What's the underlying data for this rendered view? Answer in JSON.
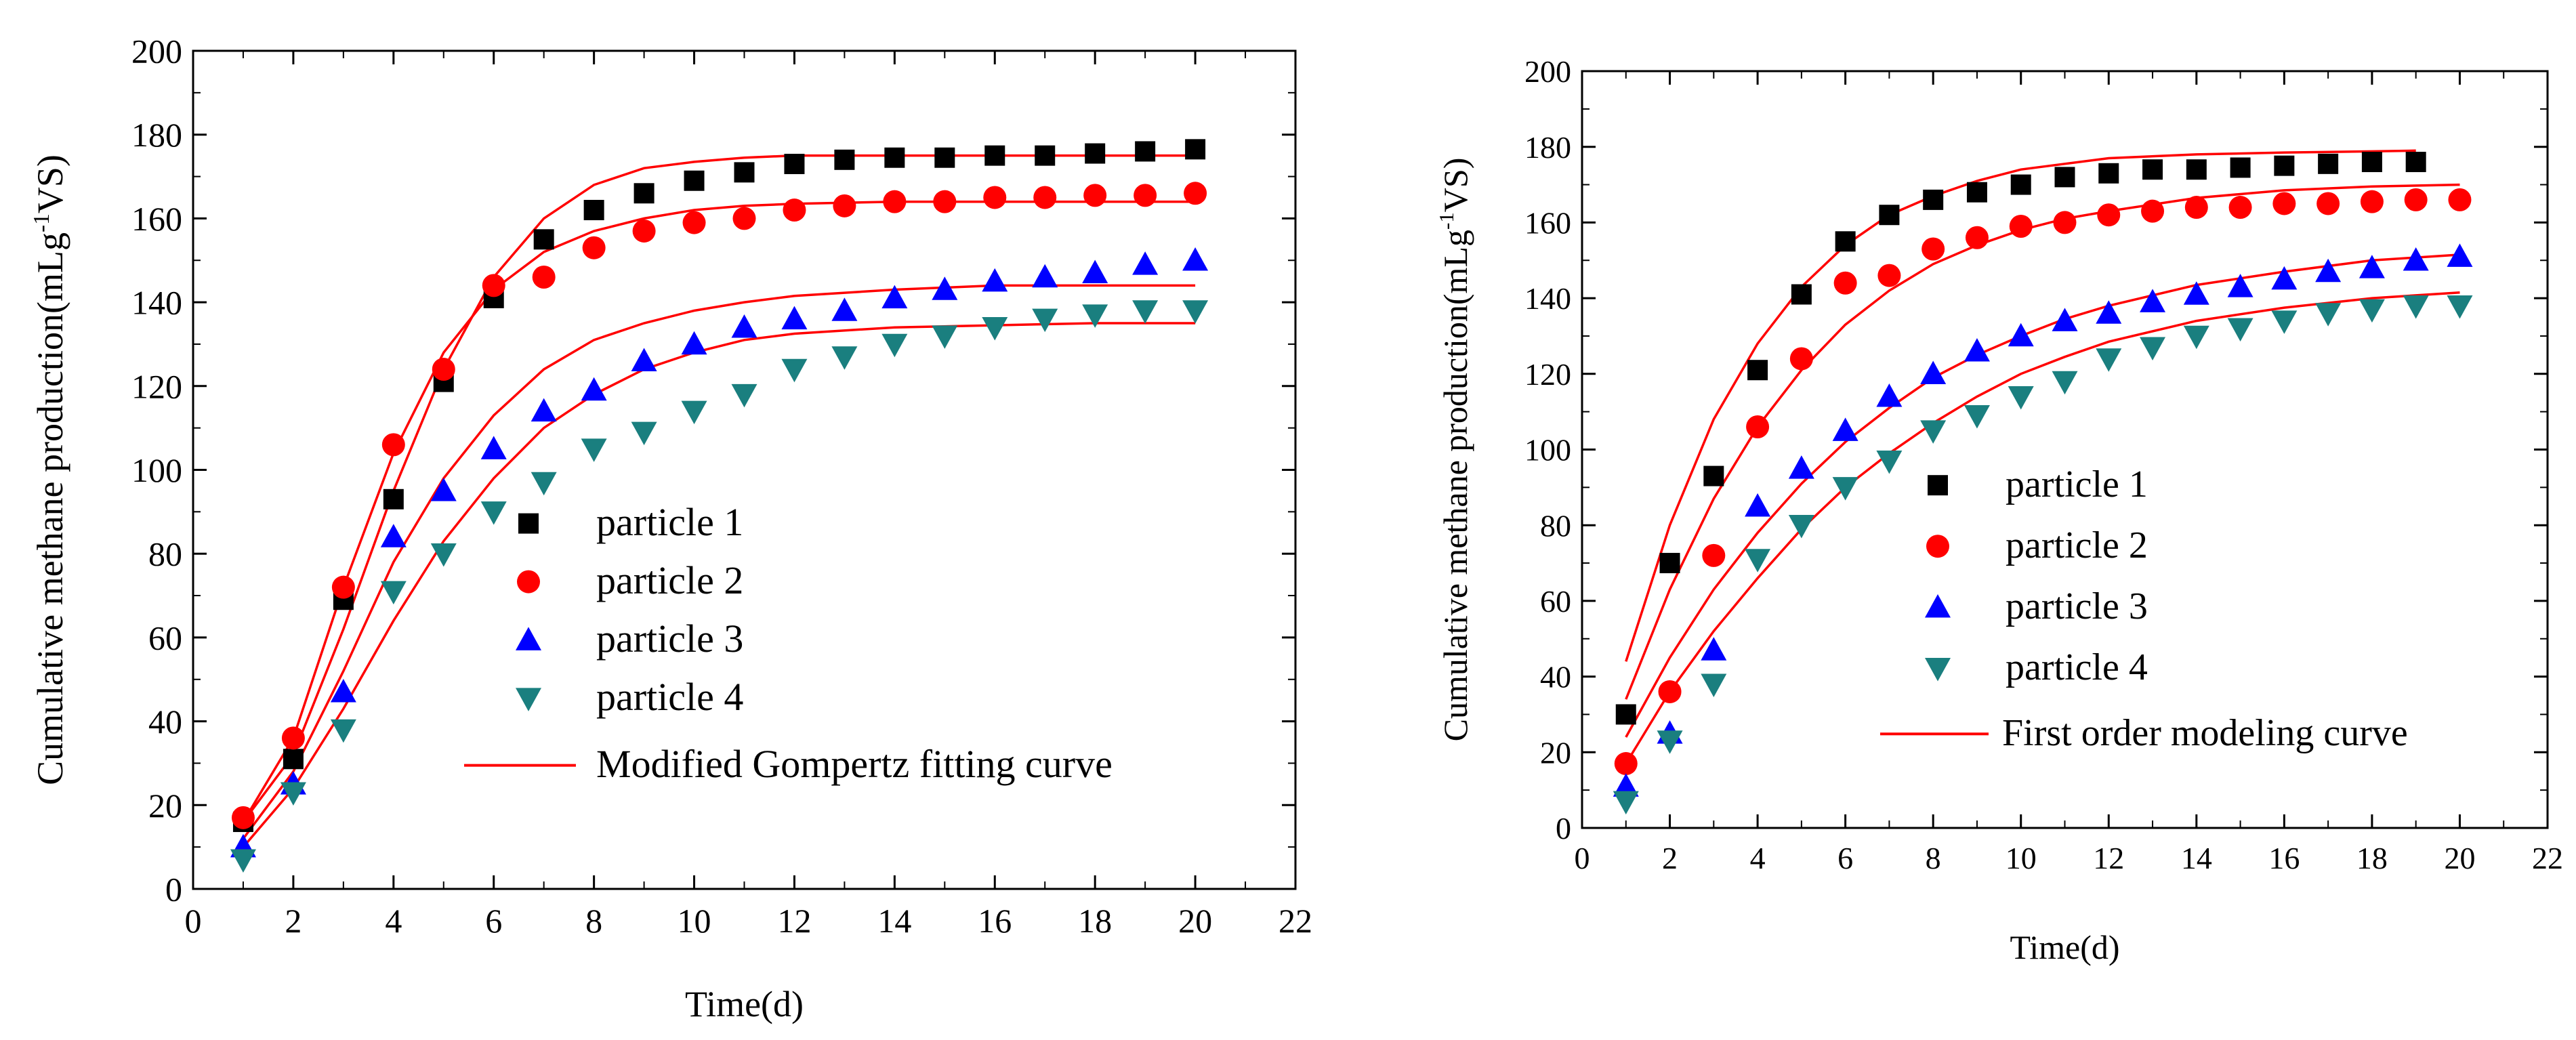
{
  "chart_data": [
    {
      "type": "scatter",
      "panel": "left",
      "xlabel": "Time(d)",
      "ylabel": "Cumulative methane production(mLg",
      "ylabel_sup": "-1",
      "ylabel_end": "VS)",
      "xlim": [
        0,
        22
      ],
      "ylim": [
        0,
        200
      ],
      "xticks": [
        0,
        2,
        4,
        6,
        8,
        10,
        12,
        14,
        16,
        18,
        20,
        22
      ],
      "yticks": [
        0,
        20,
        40,
        60,
        80,
        100,
        120,
        140,
        160,
        180,
        200
      ],
      "legend_position": "lower-right",
      "fit_label": "Modified Gompertz fitting curve",
      "series": [
        {
          "name": "particle 1",
          "marker": "square",
          "color": "#000000",
          "x": [
            1,
            2,
            3,
            4,
            5,
            6,
            7,
            8,
            9,
            10,
            11,
            12,
            13,
            14,
            15,
            16,
            17,
            18,
            19,
            20
          ],
          "values": [
            16,
            31,
            69,
            93,
            121,
            141,
            155,
            162,
            166,
            169,
            171,
            173,
            174,
            174.5,
            174.5,
            175,
            175,
            175.5,
            176,
            176.5
          ]
        },
        {
          "name": "particle 2",
          "marker": "circle",
          "color": "#ff0000",
          "x": [
            1,
            2,
            3,
            4,
            5,
            6,
            7,
            8,
            9,
            10,
            11,
            12,
            13,
            14,
            15,
            16,
            17,
            18,
            19,
            20
          ],
          "values": [
            17,
            36,
            72,
            106,
            124,
            144,
            146,
            153,
            157,
            159,
            160,
            162,
            163,
            164,
            164,
            165,
            165,
            165.5,
            165.5,
            166
          ]
        },
        {
          "name": "particle 3",
          "marker": "triangle-up",
          "color": "#0000ff",
          "x": [
            1,
            2,
            3,
            4,
            5,
            6,
            7,
            8,
            9,
            10,
            11,
            12,
            13,
            14,
            15,
            16,
            17,
            18,
            19,
            20
          ],
          "values": [
            10,
            25,
            47,
            84,
            95,
            105,
            114,
            119,
            126,
            130,
            134,
            136,
            138,
            141,
            143,
            145,
            146,
            147,
            149,
            150
          ]
        },
        {
          "name": "particle 4",
          "marker": "triangle-down",
          "color": "#1a7f7f",
          "x": [
            1,
            2,
            3,
            4,
            5,
            6,
            7,
            8,
            9,
            10,
            11,
            12,
            13,
            14,
            15,
            16,
            17,
            18,
            19,
            20
          ],
          "values": [
            7,
            23,
            38,
            71,
            80,
            90,
            97,
            105,
            109,
            114,
            118,
            124,
            127,
            130,
            132,
            134,
            136,
            137,
            138,
            138
          ]
        }
      ],
      "fits": [
        {
          "for": "particle 1",
          "x": [
            1,
            2,
            3,
            4,
            5,
            6,
            7,
            8,
            9,
            10,
            11,
            12,
            14,
            16,
            18,
            20
          ],
          "values": [
            16,
            32,
            62,
            95,
            124,
            146,
            160,
            168,
            172,
            173.5,
            174.5,
            175,
            175,
            175,
            175,
            175
          ]
        },
        {
          "for": "particle 2",
          "x": [
            1,
            2,
            3,
            4,
            5,
            6,
            7,
            8,
            9,
            10,
            11,
            12,
            14,
            16,
            18,
            20
          ],
          "values": [
            16,
            36,
            72,
            104,
            128,
            143,
            152,
            157,
            160,
            162,
            163,
            163.5,
            164,
            164,
            164,
            164
          ]
        },
        {
          "for": "particle 3",
          "x": [
            1,
            2,
            3,
            4,
            5,
            6,
            7,
            8,
            9,
            10,
            11,
            12,
            14,
            16,
            18,
            20
          ],
          "values": [
            12,
            28,
            52,
            78,
            98,
            113,
            124,
            131,
            135,
            138,
            140,
            141.5,
            143,
            144,
            144,
            144
          ]
        },
        {
          "for": "particle 4",
          "x": [
            1,
            2,
            3,
            4,
            5,
            6,
            7,
            8,
            9,
            10,
            11,
            12,
            14,
            16,
            18,
            20
          ],
          "values": [
            10,
            24,
            43,
            64,
            83,
            98,
            110,
            118,
            124,
            128,
            131,
            132.5,
            134,
            134.5,
            135,
            135
          ]
        }
      ]
    },
    {
      "type": "scatter",
      "panel": "right",
      "xlabel": "Time(d)",
      "ylabel": "Cumulative methane production(mLg",
      "ylabel_sup": "-1",
      "ylabel_end": "VS)",
      "xlim": [
        0,
        22
      ],
      "ylim": [
        0,
        200
      ],
      "xticks": [
        0,
        2,
        4,
        6,
        8,
        10,
        12,
        14,
        16,
        18,
        20,
        22
      ],
      "yticks": [
        0,
        20,
        40,
        60,
        80,
        100,
        120,
        140,
        160,
        180,
        200
      ],
      "legend_position": "lower-right",
      "fit_label": "First order modeling curve",
      "series": [
        {
          "name": "particle 1",
          "marker": "square",
          "color": "#000000",
          "x": [
            1,
            2,
            3,
            4,
            5,
            6,
            7,
            8,
            9,
            10,
            11,
            12,
            13,
            14,
            15,
            16,
            17,
            18,
            19
          ],
          "values": [
            30,
            70,
            93,
            121,
            141,
            155,
            162,
            166,
            168,
            170,
            172,
            173,
            174,
            174,
            174.5,
            175,
            175.5,
            176,
            176
          ]
        },
        {
          "name": "particle 2",
          "marker": "circle",
          "color": "#ff0000",
          "x": [
            1,
            2,
            3,
            4,
            5,
            6,
            7,
            8,
            9,
            10,
            11,
            12,
            13,
            14,
            15,
            16,
            17,
            18,
            19,
            20
          ],
          "values": [
            17,
            36,
            72,
            106,
            124,
            144,
            146,
            153,
            156,
            159,
            160,
            162,
            163,
            164,
            164,
            165,
            165,
            165.5,
            166,
            166
          ]
        },
        {
          "name": "particle 3",
          "marker": "triangle-up",
          "color": "#0000ff",
          "x": [
            1,
            2,
            3,
            4,
            5,
            6,
            7,
            8,
            9,
            10,
            11,
            12,
            13,
            14,
            15,
            16,
            17,
            18,
            19,
            20
          ],
          "values": [
            11,
            25,
            47,
            85,
            95,
            105,
            114,
            120,
            126,
            130,
            134,
            136,
            139,
            141,
            143,
            145,
            147,
            148,
            150,
            151
          ]
        },
        {
          "name": "particle 4",
          "marker": "triangle-down",
          "color": "#1a7f7f",
          "x": [
            1,
            2,
            3,
            4,
            5,
            6,
            7,
            8,
            9,
            10,
            11,
            12,
            13,
            14,
            15,
            16,
            17,
            18,
            19,
            20
          ],
          "values": [
            7,
            23,
            38,
            71,
            80,
            90,
            97,
            105,
            109,
            114,
            118,
            124,
            127,
            130,
            132,
            134,
            136,
            137,
            138,
            138
          ]
        }
      ],
      "fits": [
        {
          "for": "particle 1",
          "x": [
            1,
            2,
            3,
            4,
            5,
            6,
            7,
            8,
            9,
            10,
            11,
            12,
            14,
            16,
            18,
            19
          ],
          "values": [
            44,
            80,
            108,
            128,
            143,
            154,
            162,
            167,
            171,
            174,
            175.5,
            177,
            178,
            178.5,
            178.8,
            179
          ]
        },
        {
          "for": "particle 2",
          "x": [
            1,
            2,
            3,
            4,
            5,
            6,
            7,
            8,
            9,
            10,
            11,
            12,
            14,
            16,
            18,
            20
          ],
          "values": [
            34,
            63,
            87,
            106,
            121,
            133,
            142,
            149,
            154,
            158,
            161,
            163,
            166.5,
            168.5,
            169.5,
            170
          ]
        },
        {
          "for": "particle 3",
          "x": [
            1,
            2,
            3,
            4,
            5,
            6,
            7,
            8,
            9,
            10,
            11,
            12,
            14,
            16,
            18,
            20
          ],
          "values": [
            24,
            45,
            63,
            78,
            91,
            102,
            111,
            119,
            125,
            130,
            134.5,
            138,
            143.5,
            147,
            150,
            151.5
          ]
        },
        {
          "for": "particle 4",
          "x": [
            1,
            2,
            3,
            4,
            5,
            6,
            7,
            8,
            9,
            10,
            11,
            12,
            14,
            16,
            18,
            20
          ],
          "values": [
            17,
            36,
            52,
            66,
            79,
            90,
            99,
            107,
            114,
            120,
            124.5,
            128.5,
            134,
            137.5,
            140,
            141.5
          ]
        }
      ]
    }
  ]
}
